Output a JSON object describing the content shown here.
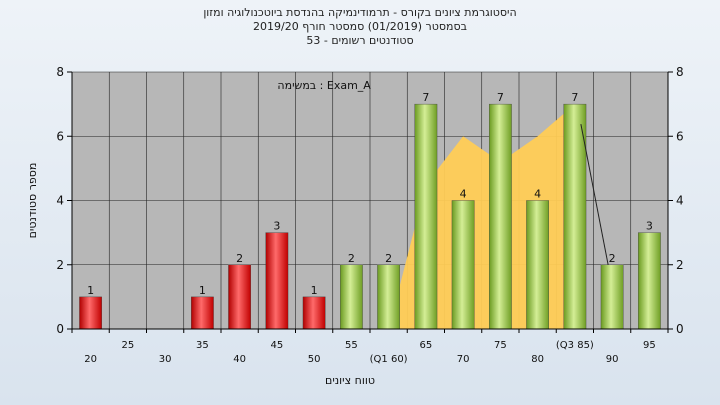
{
  "header": {
    "title_line1": "היסטוגרמת ציונים בקורס - תרמודינמיקה בהנדסת ביוטכנולוגיה ומזון",
    "title_line2": "בסמסטר  (01/2019)  סמסטר חורף  2019/20",
    "title_line3": "סטודנטים רשומים - 53"
  },
  "chart_data": {
    "type": "bar",
    "title": "היסטוגרמת ציונים בקורס - תרמודינמיקה בהנדסת ביוטכנולוגיה ומזון",
    "annotation": "במשימה : Exam_A",
    "xlabel": "טווח ציונים",
    "ylabel": "מספר סטודנטים",
    "ylim": [
      0,
      8
    ],
    "yticks": [
      0,
      2,
      4,
      6,
      8
    ],
    "right_axis": true,
    "grid": true,
    "categories": [
      "20",
      "25",
      "30",
      "35",
      "40",
      "45",
      "50",
      "55",
      "(Q1 60)",
      "65",
      "70",
      "75",
      "80",
      "(Q3 85)",
      "90",
      "95"
    ],
    "values": [
      1,
      0,
      0,
      1,
      2,
      3,
      1,
      2,
      2,
      7,
      4,
      7,
      4,
      7,
      2,
      3
    ],
    "value_labels": [
      "1",
      "",
      "",
      "1",
      "2",
      "3",
      "1",
      "2",
      "2",
      "7",
      "4",
      "7",
      "4",
      "7",
      "2",
      "3"
    ],
    "bar_colors": [
      "red",
      "red",
      "red",
      "red",
      "red",
      "red",
      "red",
      "green",
      "green",
      "green",
      "green",
      "green",
      "green",
      "green",
      "green",
      "green"
    ],
    "area_series": {
      "name": "",
      "x": [
        "(Q1 60)",
        "65",
        "70",
        "75",
        "80",
        "(Q3 85)"
      ],
      "values": [
        0,
        4.5,
        6,
        5.2,
        6,
        7
      ]
    },
    "colors": {
      "red": "#e02020",
      "green": "#8fc43d",
      "area": "#ffcc55",
      "plot_bg": "#b7b7b7"
    }
  }
}
